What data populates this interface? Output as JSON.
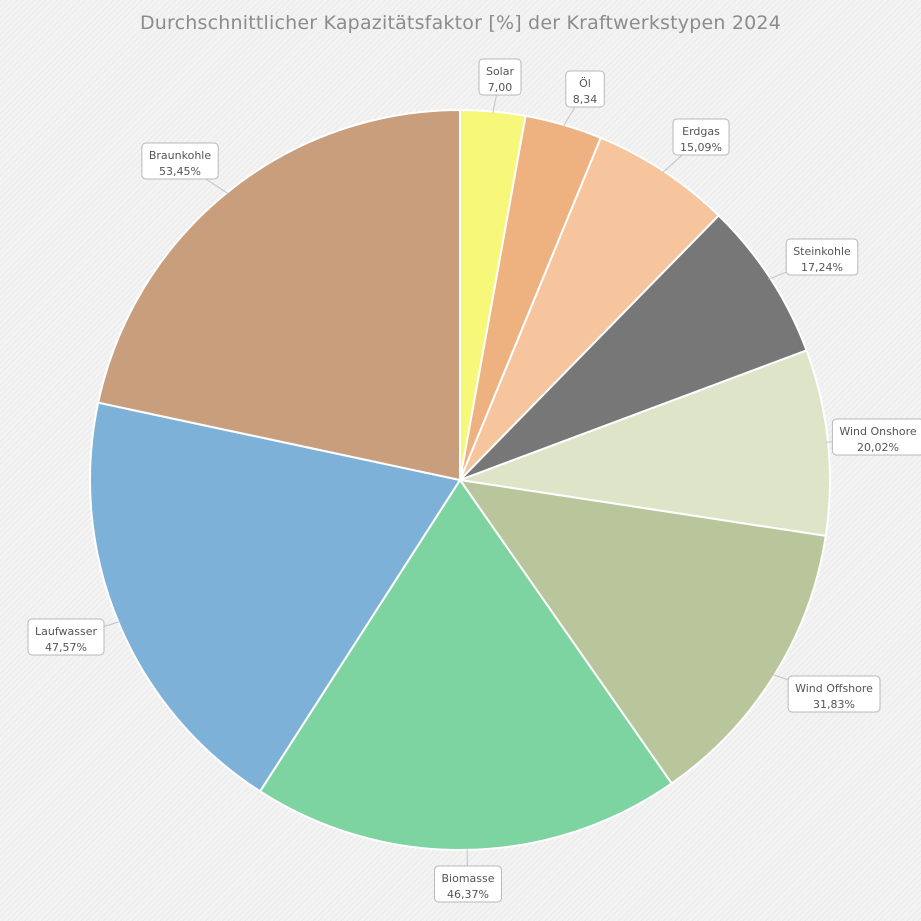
{
  "chart_data": {
    "type": "pie",
    "title": "Durchschnittlicher  Kapazitätsfaktor  [%] der Kraftwerkstypen 2024",
    "slices": [
      {
        "name": "Solar",
        "value": 7.0,
        "value_label": "7,00",
        "color": "#f7f779"
      },
      {
        "name": "Öl",
        "value": 8.34,
        "value_label": "8,34",
        "color": "#edb27f"
      },
      {
        "name": "Erdgas",
        "value": 15.09,
        "value_label": "15,09%",
        "color": "#f6c59d"
      },
      {
        "name": "Steinkohle",
        "value": 17.24,
        "value_label": "17,24%",
        "color": "#777777"
      },
      {
        "name": "Wind Onshore",
        "value": 20.02,
        "value_label": "20,02%",
        "color": "#dde4c7"
      },
      {
        "name": "Wind Offshore",
        "value": 31.83,
        "value_label": "31,83%",
        "color": "#b9c59a"
      },
      {
        "name": "Biomasse",
        "value": 46.37,
        "value_label": "46,37%",
        "color": "#7ed4a0"
      },
      {
        "name": "Laufwasser",
        "value": 47.57,
        "value_label": "47,57%",
        "color": "#7db1d8"
      },
      {
        "name": "Braunkohle",
        "value": 53.45,
        "value_label": "53,45%",
        "color": "#c99e7c"
      }
    ]
  }
}
